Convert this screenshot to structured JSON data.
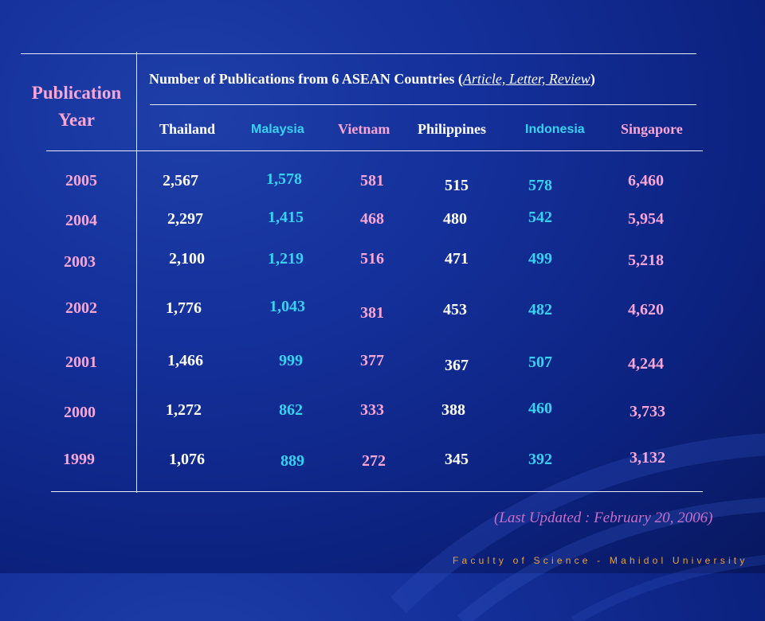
{
  "header": {
    "pub_year": "Publication Year",
    "title_main": "Number of Publications from 6 ASEAN Countries",
    "title_sub": "Article, Letter, Review",
    "countries": [
      "Thailand",
      "Malaysia",
      "Vietnam",
      "Philippines",
      "Indonesia",
      "Singapore"
    ]
  },
  "rows": [
    {
      "year": "2005",
      "values": [
        "2,567",
        "1,578",
        "581",
        "515",
        "578",
        "6,460"
      ]
    },
    {
      "year": "2004",
      "values": [
        "2,297",
        "1,415",
        "468",
        "480",
        "542",
        "5,954"
      ]
    },
    {
      "year": "2003",
      "values": [
        "2,100",
        "1,219",
        "516",
        "471",
        "499",
        "5,218"
      ]
    },
    {
      "year": "2002",
      "values": [
        "1,776",
        "1,043",
        "381",
        "453",
        "482",
        "4,620"
      ]
    },
    {
      "year": "2001",
      "values": [
        "1,466",
        "999",
        "377",
        "367",
        "507",
        "4,244"
      ]
    },
    {
      "year": "2000",
      "values": [
        "1,272",
        "862",
        "333",
        "388",
        "460",
        "3,733"
      ]
    },
    {
      "year": "1999",
      "values": [
        "1,076",
        "889",
        "272",
        "345",
        "392",
        "3,132"
      ]
    }
  ],
  "updated": "(Last Updated : February 20, 2006)",
  "footer": "Faculty of Science - Mahidol University",
  "colors": {
    "year_and_heading": "#f7a6d6",
    "malaysia_indonesia": "#37d2f2",
    "default_text": "#ffffff",
    "updated_note": "#c86ec8",
    "footer": "#e9a33a"
  }
}
